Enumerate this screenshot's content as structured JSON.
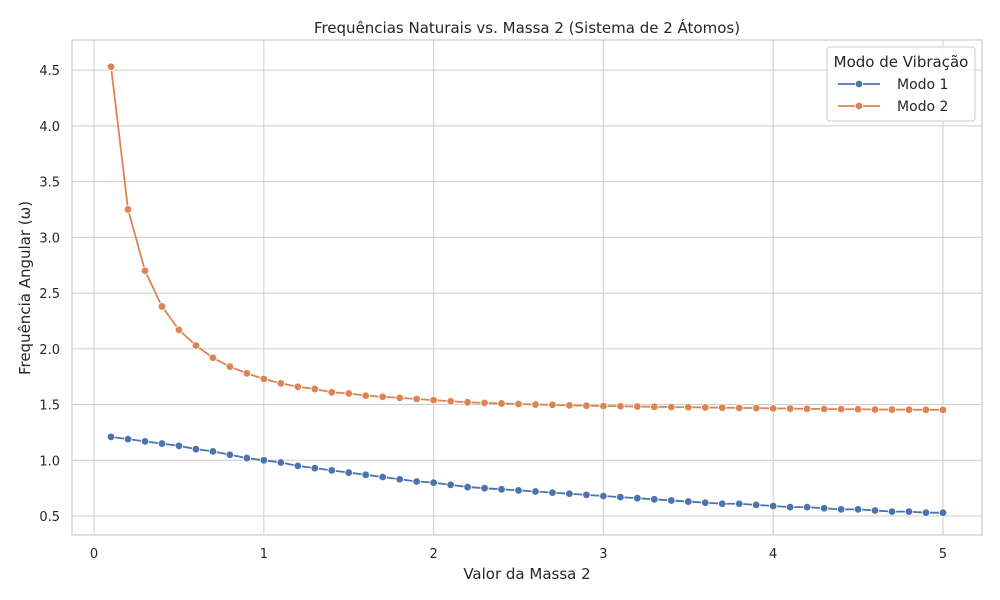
{
  "chart_data": {
    "type": "line",
    "title": "Frequências Naturais vs. Massa 2 (Sistema de 2 Átomos)",
    "xlabel": "Valor da Massa 2",
    "ylabel": "Frequência Angular (ω)",
    "xlim": [
      -0.13,
      5.23
    ],
    "ylim": [
      0.33,
      4.77
    ],
    "xticks": [
      0,
      1,
      2,
      3,
      4,
      5
    ],
    "yticks": [
      0.5,
      1.0,
      1.5,
      2.0,
      2.5,
      3.0,
      3.5,
      4.0,
      4.5
    ],
    "xtick_labels": [
      "0",
      "1",
      "2",
      "3",
      "4",
      "5"
    ],
    "ytick_labels": [
      "0.5",
      "1.0",
      "1.5",
      "2.0",
      "2.5",
      "3.0",
      "3.5",
      "4.0",
      "4.5"
    ],
    "grid": true,
    "legend": {
      "title": "Modo de Vibração",
      "placement": "upper-right"
    },
    "x": [
      0.1,
      0.2,
      0.3,
      0.4,
      0.5,
      0.6,
      0.7,
      0.8,
      0.9,
      1.0,
      1.1,
      1.2,
      1.3,
      1.4,
      1.5,
      1.6,
      1.7,
      1.8,
      1.9,
      2.0,
      2.1,
      2.2,
      2.3,
      2.4,
      2.5,
      2.6,
      2.7,
      2.8,
      2.9,
      3.0,
      3.1,
      3.2,
      3.3,
      3.4,
      3.5,
      3.6,
      3.7,
      3.8,
      3.9,
      4.0,
      4.1,
      4.2,
      4.3,
      4.4,
      4.5,
      4.6,
      4.7,
      4.8,
      4.9,
      5.0
    ],
    "series": [
      {
        "name": "Modo 1",
        "color": "#4c72b0",
        "values": [
          1.21,
          1.19,
          1.17,
          1.15,
          1.13,
          1.1,
          1.08,
          1.05,
          1.02,
          1.0,
          0.98,
          0.95,
          0.93,
          0.91,
          0.89,
          0.87,
          0.85,
          0.83,
          0.81,
          0.8,
          0.78,
          0.76,
          0.75,
          0.74,
          0.73,
          0.72,
          0.71,
          0.7,
          0.69,
          0.68,
          0.67,
          0.66,
          0.65,
          0.64,
          0.63,
          0.62,
          0.61,
          0.61,
          0.6,
          0.59,
          0.58,
          0.58,
          0.57,
          0.56,
          0.56,
          0.55,
          0.54,
          0.54,
          0.53,
          0.53
        ]
      },
      {
        "name": "Modo 2",
        "color": "#dd8452",
        "values": [
          4.53,
          3.25,
          2.7,
          2.38,
          2.17,
          2.03,
          1.92,
          1.84,
          1.78,
          1.73,
          1.69,
          1.66,
          1.64,
          1.61,
          1.6,
          1.58,
          1.57,
          1.56,
          1.55,
          1.54,
          1.53,
          1.52,
          1.515,
          1.51,
          1.505,
          1.5,
          1.497,
          1.493,
          1.49,
          1.487,
          1.485,
          1.482,
          1.48,
          1.478,
          1.476,
          1.474,
          1.472,
          1.47,
          1.468,
          1.466,
          1.464,
          1.462,
          1.46,
          1.459,
          1.458,
          1.456,
          1.455,
          1.454,
          1.453,
          1.452
        ]
      }
    ]
  }
}
